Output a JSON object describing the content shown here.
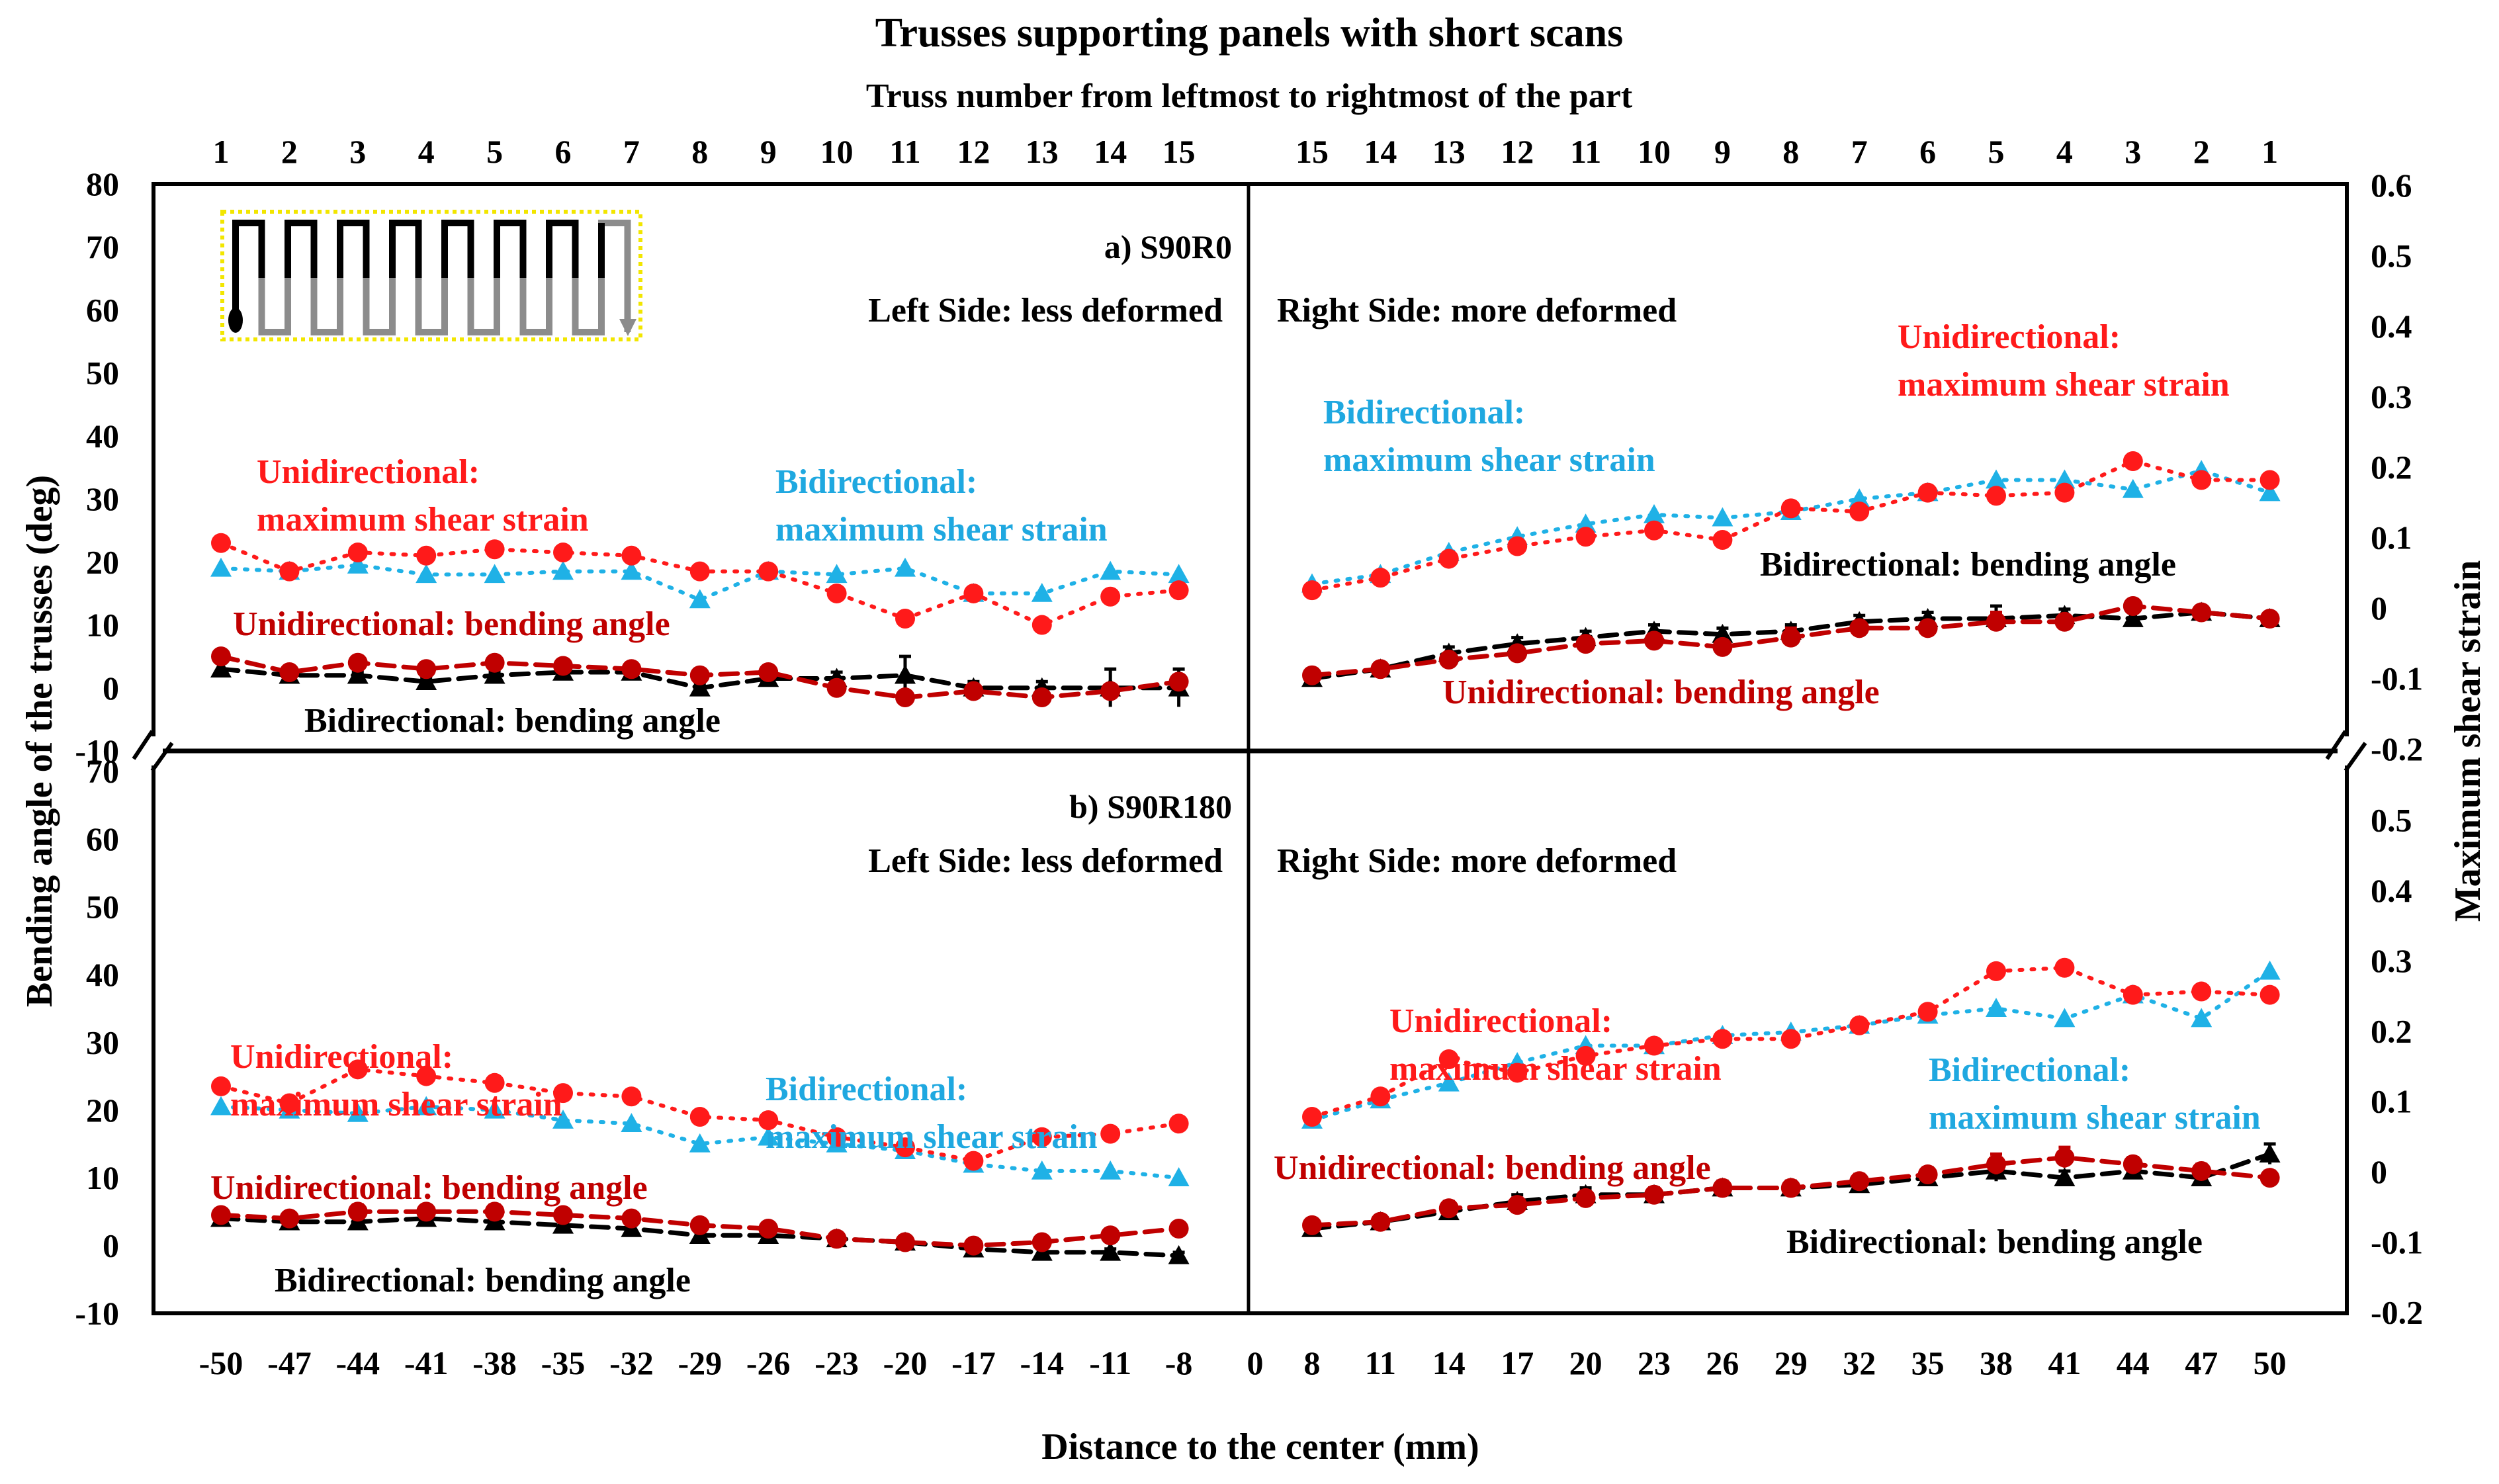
{
  "chart_data": {
    "type": "line",
    "title": "Trusses supporting panels with short scans",
    "top_axis_title": "Truss number from leftmost to rightmost of the part",
    "top_axis_left_ticks": [
      "1",
      "2",
      "3",
      "4",
      "5",
      "6",
      "7",
      "8",
      "9",
      "10",
      "11",
      "12",
      "13",
      "14",
      "15"
    ],
    "top_axis_right_ticks": [
      "15",
      "14",
      "13",
      "12",
      "11",
      "10",
      "9",
      "8",
      "7",
      "6",
      "5",
      "4",
      "3",
      "2",
      "1"
    ],
    "xlabel": "Distance to the center (mm)",
    "ylabel_left": "Bending angle of the trusses (deg)",
    "ylabel_right": "Maximum shear strain",
    "x_ticks": [
      "-50",
      "-47",
      "-44",
      "-41",
      "-38",
      "-35",
      "-32",
      "-29",
      "-26",
      "-23",
      "-20",
      "-17",
      "-14",
      "-11",
      "-8",
      "0",
      "8",
      "11",
      "14",
      "17",
      "20",
      "23",
      "26",
      "29",
      "32",
      "35",
      "38",
      "41",
      "44",
      "47",
      "50"
    ],
    "y_left_ticks_top": [
      "80",
      "70",
      "60",
      "50",
      "40",
      "30",
      "20",
      "10",
      "0",
      "-10"
    ],
    "y_left_ticks_bottom": [
      "70",
      "60",
      "50",
      "40",
      "30",
      "20",
      "10",
      "0",
      "-10"
    ],
    "y_right_ticks_top": [
      "0.6",
      "0.5",
      "0.4",
      "0.3",
      "0.2",
      "0.1",
      "0",
      "-0.1",
      "-0.2"
    ],
    "y_right_ticks_bottom": [
      "0.5",
      "0.4",
      "0.3",
      "0.2",
      "0.1",
      "0",
      "-0.1",
      "-0.2"
    ],
    "colors": {
      "uni_strain": "#ff1a1a",
      "bi_strain": "#1fb1e6",
      "uni_bend": "#c00000",
      "bi_bend": "#000000",
      "uni_label": "#ff1a1a",
      "bi_label": "#1fa8e0",
      "uni_bend_label": "#c00000",
      "inset_border": "#f2e600",
      "inset_black": "#000000",
      "inset_gray": "#8c8c8c"
    },
    "left_x": [
      -50,
      -47,
      -44,
      -41,
      -38,
      -35,
      -32,
      -29,
      -26,
      -23,
      -20,
      -17,
      -14,
      -11,
      -8
    ],
    "right_x": [
      8,
      11,
      14,
      17,
      20,
      23,
      26,
      29,
      32,
      35,
      38,
      41,
      44,
      47,
      50
    ],
    "panels": [
      {
        "title": "a) S90R0",
        "left_side_label": "Left Side: less deformed",
        "right_side_label": "Right Side: more deformed",
        "ylim": [
          -10,
          80
        ],
        "inset": true,
        "left": {
          "uni_strain": [
            23,
            18.5,
            21.5,
            21,
            22,
            21.5,
            21,
            18.5,
            18.5,
            15,
            11,
            15,
            10,
            14.5,
            15.5
          ],
          "bi_strain": [
            19,
            18.5,
            19.5,
            18,
            18,
            18.5,
            18.5,
            14,
            18.5,
            18,
            19,
            15,
            15,
            18.5,
            18
          ],
          "uni_bend": [
            5,
            2.5,
            4,
            3,
            4,
            3.5,
            3,
            2,
            2.5,
            0,
            -1.5,
            -0.5,
            -1.5,
            -0.5,
            1
          ],
          "bi_bend": [
            3,
            2,
            2,
            1,
            2,
            2.5,
            2.5,
            0,
            1.5,
            1.5,
            2,
            0,
            0,
            0,
            0
          ],
          "uni_bend_err": [
            1,
            0.5,
            0.5,
            0.5,
            0.5,
            0.5,
            1,
            0.5,
            0.5,
            1,
            1,
            1,
            0.5,
            0.5,
            1
          ],
          "bi_bend_err": [
            1,
            0.5,
            0.5,
            0.5,
            0.5,
            0.5,
            1,
            0.5,
            0.5,
            1,
            3,
            1,
            1,
            3,
            3
          ]
        },
        "right": {
          "uni_strain": [
            15.5,
            17.5,
            20.5,
            22.5,
            24,
            25,
            23.5,
            28.5,
            28,
            31,
            30.5,
            31,
            36,
            33,
            33
          ],
          "bi_strain": [
            16.5,
            18,
            21.5,
            24,
            26,
            27.5,
            27,
            28,
            30,
            31,
            33,
            33,
            31.5,
            34.5,
            31
          ],
          "uni_bend": [
            2,
            3,
            4.5,
            5.5,
            7,
            7.5,
            6.5,
            8,
            9.5,
            9.5,
            10.5,
            10.5,
            13,
            12,
            11
          ],
          "bi_bend": [
            1.5,
            3,
            5.5,
            7,
            8,
            9,
            8.5,
            9,
            10.5,
            11,
            11,
            11.5,
            11,
            12,
            11
          ],
          "uni_bend_err": [
            0.5,
            0.5,
            0.5,
            1,
            1,
            1,
            1,
            1.5,
            1,
            1,
            1.5,
            1,
            1,
            1,
            1
          ],
          "bi_bend_err": [
            0.5,
            0.5,
            1,
            1,
            1,
            1,
            1,
            1,
            1,
            1,
            2,
            1,
            1,
            1,
            1
          ]
        },
        "labels": {
          "uni_strain_left": [
            "Unidirectional:",
            "maximum shear strain"
          ],
          "bi_strain_left": [
            "Bidirectional:",
            "maximum shear strain"
          ],
          "uni_bend_left": "Unidirectional: bending angle",
          "bi_bend_left": "Bidirectional: bending angle",
          "bi_strain_right": [
            "Bidirectional:",
            "maximum shear strain"
          ],
          "uni_strain_right": [
            "Unidirectional:",
            "maximum shear strain"
          ],
          "bi_bend_right": "Bidirectional: bending angle",
          "uni_bend_right": "Unidirectional: bending angle"
        }
      },
      {
        "title": "b) S90R180",
        "left_side_label": "Left Side: less deformed",
        "right_side_label": "Right Side: more deformed",
        "ylim": [
          -10,
          73
        ],
        "inset": false,
        "left": {
          "uni_strain": [
            23.5,
            21,
            26,
            25,
            24,
            22.5,
            22,
            19,
            18.5,
            16,
            14.5,
            12.5,
            16,
            16.5,
            18
          ],
          "bi_strain": [
            20.5,
            20,
            19.5,
            20.5,
            20,
            18.5,
            18,
            15,
            16,
            15,
            14,
            12,
            11,
            11,
            10
          ],
          "uni_bend": [
            4.5,
            4,
            5,
            5,
            5,
            4.5,
            4,
            3,
            2.5,
            1,
            0.5,
            0,
            0.5,
            1.5,
            2.5
          ],
          "bi_bend": [
            4,
            3.5,
            3.5,
            4,
            3.5,
            3,
            2.5,
            1.5,
            1.5,
            1,
            0.5,
            -0.5,
            -1,
            -1,
            -1.5
          ],
          "uni_bend_err": [
            0.5,
            0.5,
            1,
            0.5,
            1,
            0.5,
            0.5,
            0.5,
            0.5,
            0.5,
            0.5,
            0.5,
            0.5,
            0.5,
            0.5
          ],
          "bi_bend_err": [
            0.5,
            0.5,
            0.5,
            0.5,
            0.5,
            0.5,
            0.5,
            0.5,
            0.5,
            0.5,
            0.5,
            0.5,
            0.5,
            0.5,
            0.5
          ]
        },
        "right": {
          "uni_strain": [
            19,
            22,
            27.5,
            25.5,
            28,
            29.5,
            30.5,
            30.5,
            32.5,
            34.5,
            40.5,
            41,
            37,
            37.5,
            37
          ],
          "bi_strain": [
            18.5,
            21.5,
            24,
            27,
            29.5,
            29.5,
            31,
            31.5,
            32.5,
            34,
            35,
            33.5,
            37,
            33.5,
            40.5
          ],
          "uni_bend": [
            3,
            3.5,
            5.5,
            6,
            7,
            7.5,
            8.5,
            8.5,
            9.5,
            10.5,
            12,
            13,
            12,
            11,
            10
          ],
          "bi_bend": [
            2.5,
            3.5,
            5,
            6.5,
            7.5,
            7.5,
            8.5,
            8.5,
            9,
            10,
            11,
            10,
            11,
            10,
            13.5
          ],
          "uni_bend_err": [
            0.5,
            0.5,
            1,
            1,
            1,
            1,
            1,
            1,
            1,
            1,
            1.5,
            1.5,
            1,
            1,
            1
          ],
          "bi_bend_err": [
            0.5,
            0.5,
            1,
            1,
            1,
            1,
            1,
            1,
            1,
            1,
            1.5,
            1,
            1,
            1,
            1.5
          ]
        },
        "labels": {
          "uni_strain_left": [
            "Unidirectional:",
            "maximum shear strain"
          ],
          "bi_strain_left": [
            "Bidirectional:",
            "maximum shear strain"
          ],
          "uni_bend_left": "Unidirectional: bending angle",
          "bi_bend_left": "Bidirectional: bending angle",
          "uni_strain_right": [
            "Unidirectional:",
            "maximum shear strain"
          ],
          "bi_strain_right": [
            "Bidirectional:",
            "maximum shear strain"
          ],
          "uni_bend_right": "Unidirectional: bending angle",
          "bi_bend_right": "Bidirectional: bending angle"
        }
      }
    ]
  }
}
